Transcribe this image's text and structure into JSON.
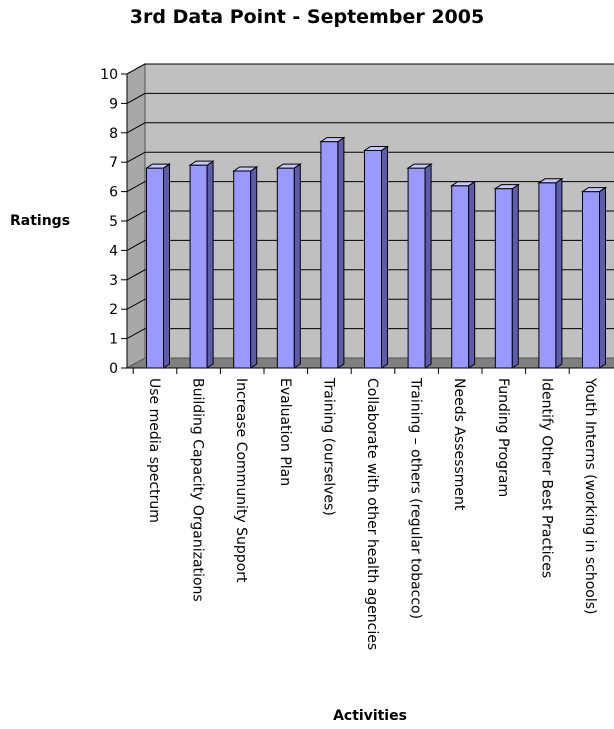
{
  "chart_data": {
    "type": "bar",
    "title": "3rd Data Point - September 2005",
    "xlabel": "Activities",
    "ylabel": "Ratings",
    "ylim": [
      0,
      10
    ],
    "yticks": [
      "0",
      "1",
      "2",
      "3",
      "4",
      "5",
      "6",
      "7",
      "8",
      "9",
      "10"
    ],
    "grid": true,
    "style": "3d",
    "categories": [
      "Use media spectrum",
      "Building Capacity Organizations",
      "Increase Community Support",
      "Evaluation Plan",
      "Training (ourselves)",
      "Collaborate with other health agencies",
      "Training – others (regular tobacco)",
      "Needs Assessment",
      "Funding Program",
      "Identify Other Best Practices",
      "Youth Interns (working in schools)"
    ],
    "values": [
      6.8,
      6.9,
      6.7,
      6.8,
      7.7,
      7.4,
      6.8,
      6.2,
      6.1,
      6.3,
      6.0
    ],
    "colors": {
      "bar_front": "#9999ff",
      "bar_side": "#5c5ca8",
      "bar_top": "#c8c8ff",
      "wall": "#c0c0c0",
      "floor": "#808080",
      "grid": "#000000"
    }
  }
}
